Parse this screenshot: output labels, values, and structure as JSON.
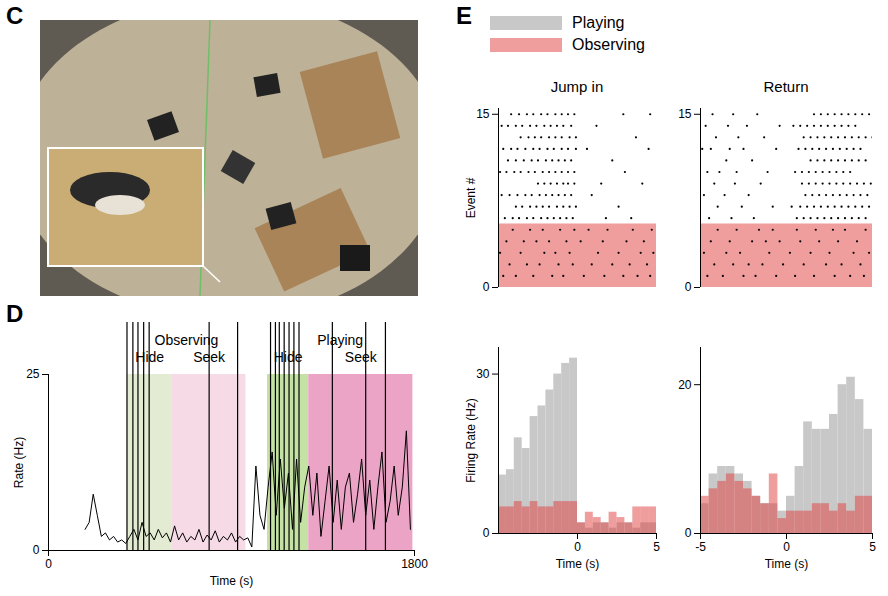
{
  "chart_data": [
    {
      "panel": "C",
      "type": "image"
    },
    {
      "panel": "D",
      "type": "line",
      "xlabel": "Time (s)",
      "ylabel": "Rate (Hz)",
      "xlim": [
        0,
        1800
      ],
      "xticks": [
        0,
        1800
      ],
      "ylim": [
        0,
        25
      ],
      "yticks": [
        0,
        25
      ],
      "color": "#000000",
      "x": [
        180,
        200,
        220,
        240,
        260,
        280,
        300,
        320,
        340,
        360,
        380,
        400,
        420,
        440,
        460,
        480,
        500,
        520,
        540,
        560,
        580,
        600,
        620,
        640,
        660,
        680,
        700,
        720,
        740,
        760,
        780,
        800,
        820,
        840,
        860,
        880,
        900,
        920,
        940,
        960,
        980,
        1000,
        1020,
        1040,
        1060,
        1080,
        1100,
        1120,
        1140,
        1160,
        1180,
        1200,
        1220,
        1240,
        1260,
        1280,
        1300,
        1320,
        1340,
        1360,
        1380,
        1400,
        1420,
        1440,
        1460,
        1480,
        1500,
        1520,
        1540,
        1560,
        1580,
        1600,
        1620,
        1640,
        1660,
        1680,
        1700,
        1720,
        1740,
        1760,
        1780
      ],
      "values": [
        3,
        4,
        8,
        5,
        2,
        2.5,
        1.5,
        2,
        1.2,
        1.5,
        1,
        2,
        3,
        1.5,
        4,
        2,
        2.5,
        1.5,
        3,
        1.8,
        2.5,
        1.2,
        3.5,
        1.5,
        2.5,
        1.2,
        2,
        1.5,
        3,
        1.2,
        2.2,
        1.5,
        2.8,
        1.2,
        2,
        1.5,
        2.5,
        1.2,
        2,
        1.5,
        1.8,
        0.5,
        12,
        5,
        3,
        9,
        14,
        5,
        13,
        6,
        11,
        3,
        13,
        4,
        9,
        12,
        5,
        11,
        2,
        7,
        12,
        4,
        10,
        3,
        9,
        11,
        4,
        8,
        13,
        5,
        10,
        3,
        9,
        14,
        4,
        7,
        12,
        5,
        9,
        17,
        3
      ],
      "regions": [
        {
          "group": "Observing",
          "label": "Hide",
          "start": 386,
          "end": 609,
          "color": "#e3ecd2"
        },
        {
          "group": "Observing",
          "label": "Seek",
          "start": 609,
          "end": 971,
          "color": "#f6dbe7"
        },
        {
          "group": "Playing",
          "label": "Hide",
          "start": 1077,
          "end": 1280,
          "color": "#c4e2a4"
        },
        {
          "group": "Playing",
          "label": "Seek",
          "start": 1280,
          "end": 1792,
          "color": "#eba3c6"
        }
      ],
      "events": [
        386,
        415,
        440,
        468,
        495,
        790,
        930,
        1092,
        1116,
        1135,
        1159,
        1183,
        1207,
        1232,
        1396,
        1560,
        1657
      ]
    },
    {
      "panel": "E",
      "type": "raster",
      "title": "Jump in",
      "ylabel": "Event #",
      "xlim": [
        -5,
        5
      ],
      "ylim": [
        0,
        15.5
      ],
      "yticks": [
        0,
        15
      ],
      "tick_labels": "y",
      "shade": {
        "name": "Observing",
        "color": "#e03c3c",
        "y": [
          0,
          5.5
        ]
      },
      "rows": [
        {
          "event": 1,
          "condition": "Observing",
          "spikes": [
            -4.7,
            -3.9,
            -2.8,
            -1.6,
            -0.9,
            0.4,
            1.7,
            2.9,
            3.8,
            4.6
          ]
        },
        {
          "event": 2,
          "condition": "Observing",
          "spikes": [
            -4.3,
            -3.2,
            -2.4,
            -1.2,
            -0.3,
            0.9,
            2.2,
            3.3,
            4.4
          ]
        },
        {
          "event": 3,
          "condition": "Observing",
          "spikes": [
            -4.9,
            -3.6,
            -2.1,
            -1.4,
            -0.5,
            1.3,
            2.6,
            4.0,
            4.8
          ]
        },
        {
          "event": 4,
          "condition": "Observing",
          "spikes": [
            -4.5,
            -3.4,
            -2.6,
            -1.8,
            -0.7,
            0.2,
            1.6,
            3.1,
            4.2
          ]
        },
        {
          "event": 5,
          "condition": "Observing",
          "spikes": [
            -4.1,
            -3.0,
            -2.2,
            -1.1,
            -0.2,
            0.7,
            1.9,
            3.5,
            4.7
          ]
        },
        {
          "event": 6,
          "condition": "Playing",
          "spikes": [
            -4.6,
            -4.1,
            -3.7,
            -3.2,
            -2.8,
            -2.3,
            -1.9,
            -1.5,
            -1.1,
            -0.7,
            -0.3,
            1.8,
            3.4
          ]
        },
        {
          "event": 7,
          "condition": "Playing",
          "spikes": [
            -3.9,
            -3.5,
            -3.0,
            -2.6,
            -2.2,
            -1.8,
            -1.3,
            -0.9,
            -0.5,
            -0.1,
            2.6
          ]
        },
        {
          "event": 8,
          "condition": "Playing",
          "spikes": [
            -4.8,
            -4.3,
            -3.8,
            -3.3,
            -2.9,
            -2.4,
            -2.0,
            -1.6,
            -1.2,
            -0.8,
            -0.4,
            0.9
          ]
        },
        {
          "event": 9,
          "condition": "Playing",
          "spikes": [
            -2.5,
            -2.1,
            -1.7,
            -1.3,
            -0.9,
            -0.6,
            -0.2,
            1.5,
            4.1
          ]
        },
        {
          "event": 10,
          "condition": "Playing",
          "spikes": [
            -4.9,
            -4.5,
            -4.0,
            -3.6,
            -3.1,
            -2.7,
            -2.2,
            -1.8,
            -1.4,
            -1.0,
            -0.6,
            -0.2,
            3.0
          ]
        },
        {
          "event": 11,
          "condition": "Playing",
          "spikes": [
            -4.4,
            -3.9,
            -3.4,
            -2.9,
            -2.5,
            -2.0,
            -1.6,
            -1.2,
            -0.8,
            -0.4,
            2.2
          ]
        },
        {
          "event": 12,
          "condition": "Playing",
          "spikes": [
            -4.7,
            -4.2,
            -3.8,
            -3.3,
            -2.8,
            -2.4,
            -1.9,
            -1.5,
            -1.0,
            -0.6,
            -0.1,
            0.6,
            4.5
          ]
        },
        {
          "event": 13,
          "condition": "Playing",
          "spikes": [
            -3.6,
            -3.1,
            -2.7,
            -2.3,
            -1.8,
            -1.4,
            -1.0,
            -0.5,
            -0.1,
            3.7
          ]
        },
        {
          "event": 14,
          "condition": "Playing",
          "spikes": [
            -4.8,
            -4.4,
            -3.9,
            -3.5,
            -3.0,
            -2.6,
            -2.1,
            -1.7,
            -1.3,
            -0.9,
            -0.4,
            1.2
          ]
        },
        {
          "event": 15,
          "condition": "Playing",
          "spikes": [
            -4.2,
            -3.7,
            -3.2,
            -2.8,
            -2.3,
            -1.9,
            -1.4,
            -1.0,
            -0.6,
            -0.2,
            2.9,
            4.6
          ]
        }
      ]
    },
    {
      "panel": "E",
      "type": "raster",
      "title": "Return",
      "xlim": [
        -5,
        5
      ],
      "ylim": [
        0,
        15.5
      ],
      "yticks": [
        0,
        15
      ],
      "tick_labels": "y",
      "shade": {
        "name": "Observing",
        "color": "#e03c3c",
        "y": [
          0,
          5.5
        ]
      },
      "rows": [
        {
          "event": 1,
          "condition": "Observing",
          "spikes": [
            -4.6,
            -3.7,
            -2.5,
            -1.8,
            -0.6,
            0.5,
            1.6,
            2.8,
            3.7,
            4.5
          ]
        },
        {
          "event": 2,
          "condition": "Observing",
          "spikes": [
            -4.2,
            -3.1,
            -2.2,
            -1.4,
            -0.2,
            1.0,
            2.3,
            3.2,
            4.3
          ]
        },
        {
          "event": 3,
          "condition": "Observing",
          "spikes": [
            -4.8,
            -3.5,
            -2.7,
            -1.0,
            0.2,
            1.4,
            2.5,
            3.9,
            4.8
          ]
        },
        {
          "event": 4,
          "condition": "Observing",
          "spikes": [
            -4.4,
            -3.3,
            -2.0,
            -1.2,
            -0.4,
            0.8,
            1.9,
            3.0,
            4.1
          ]
        },
        {
          "event": 5,
          "condition": "Observing",
          "spikes": [
            -4.0,
            -2.9,
            -1.6,
            -0.8,
            0.6,
            1.7,
            2.7,
            3.4,
            4.6
          ]
        },
        {
          "event": 6,
          "condition": "Playing",
          "spikes": [
            -4.5,
            -3.2,
            -1.9,
            0.6,
            1.0,
            1.4,
            1.8,
            2.2,
            2.6,
            3.0,
            3.4,
            3.8,
            4.2,
            4.6
          ]
        },
        {
          "event": 7,
          "condition": "Playing",
          "spikes": [
            -4.0,
            -2.6,
            -0.8,
            0.3,
            0.8,
            1.2,
            1.6,
            2.0,
            2.4,
            2.8,
            3.2,
            3.6,
            4.0,
            4.4,
            4.8
          ]
        },
        {
          "event": 8,
          "condition": "Playing",
          "spikes": [
            -4.8,
            -3.6,
            -2.2,
            1.1,
            1.5,
            1.9,
            2.3,
            2.7,
            3.1,
            3.5,
            3.9,
            4.3,
            4.7
          ]
        },
        {
          "event": 9,
          "condition": "Playing",
          "spikes": [
            -4.2,
            -3.0,
            -1.5,
            0.9,
            1.3,
            1.7,
            2.1,
            2.5,
            2.9,
            3.3,
            3.7,
            4.1,
            4.5,
            4.9
          ]
        },
        {
          "event": 10,
          "condition": "Playing",
          "spikes": [
            -4.6,
            -3.9,
            -2.9,
            -1.1,
            0.5,
            0.9,
            1.3,
            1.7,
            2.1,
            2.5,
            2.9,
            3.3,
            3.7
          ]
        },
        {
          "event": 11,
          "condition": "Playing",
          "spikes": [
            -3.5,
            -2.0,
            1.4,
            1.8,
            2.2,
            2.6,
            3.0,
            3.4,
            3.8,
            4.2,
            4.6
          ]
        },
        {
          "event": 12,
          "condition": "Playing",
          "spikes": [
            -4.9,
            -4.4,
            -3.3,
            -2.5,
            -0.6,
            0.7,
            1.1,
            1.5,
            1.9,
            2.3,
            2.7,
            3.1,
            3.5,
            3.9,
            4.3
          ]
        },
        {
          "event": 13,
          "condition": "Playing",
          "spikes": [
            -4.1,
            -2.8,
            -1.3,
            1.0,
            1.4,
            1.8,
            2.2,
            2.6,
            3.0,
            3.4,
            3.8,
            4.2,
            4.6,
            5.0
          ]
        },
        {
          "event": 14,
          "condition": "Playing",
          "spikes": [
            -4.7,
            -3.4,
            -2.3,
            -0.4,
            0.4,
            0.8,
            1.2,
            1.6,
            2.0,
            2.4,
            2.8,
            3.2,
            3.6,
            4.0
          ]
        },
        {
          "event": 15,
          "condition": "Playing",
          "spikes": [
            -4.3,
            -3.1,
            -1.7,
            1.6,
            2.0,
            2.4,
            2.8,
            3.2,
            3.6,
            4.0,
            4.4,
            4.8
          ]
        }
      ]
    },
    {
      "panel": "E",
      "type": "bar",
      "xlabel": "Time (s)",
      "ylabel": "Firing Rate (Hz)",
      "xlim": [
        -5,
        5
      ],
      "xticks": [
        0,
        5
      ],
      "ylim": [
        0,
        35
      ],
      "yticks": [
        0,
        30
      ],
      "legend": "top",
      "bins": [
        -5,
        -4.5,
        -4,
        -3.5,
        -3,
        -2.5,
        -2,
        -1.5,
        -1,
        -0.5,
        0,
        0.5,
        1,
        1.5,
        2,
        2.5,
        3,
        3.5,
        4,
        4.5,
        5
      ],
      "series": [
        {
          "name": "Playing",
          "color": "#c8c8c8",
          "values": [
            11,
            12,
            18,
            16,
            22,
            24,
            27,
            30,
            32,
            33,
            2,
            1,
            2,
            2,
            1,
            2,
            2,
            1,
            2,
            2
          ]
        },
        {
          "name": "Observing",
          "color": "#e03c3c",
          "values": [
            5,
            5,
            6,
            5,
            6,
            5,
            5,
            6,
            6,
            6,
            2,
            4,
            3,
            2,
            4,
            3,
            2,
            5,
            5,
            5
          ]
        }
      ]
    },
    {
      "panel": "E",
      "type": "bar",
      "xlabel": "Time (s)",
      "xlim": [
        -5,
        5
      ],
      "xticks": [
        -5,
        0,
        5
      ],
      "ylim": [
        0,
        25
      ],
      "yticks": [
        0,
        20
      ],
      "bins": [
        -5,
        -4.5,
        -4,
        -3.5,
        -3,
        -2.5,
        -2,
        -1.5,
        -1,
        -0.5,
        0,
        0.5,
        1,
        1.5,
        2,
        2.5,
        3,
        3.5,
        4,
        4.5,
        5
      ],
      "series": [
        {
          "name": "Playing",
          "color": "#c8c8c8",
          "values": [
            4,
            8,
            9,
            9,
            8,
            7,
            5,
            4,
            4,
            3,
            5,
            9,
            15,
            14,
            14,
            16,
            20,
            21,
            18,
            14
          ]
        },
        {
          "name": "Observing",
          "color": "#e03c3c",
          "values": [
            5,
            6,
            7,
            8,
            7,
            6,
            5,
            4,
            8,
            2,
            3,
            3,
            3,
            4,
            4,
            3,
            4,
            3,
            5,
            5
          ]
        }
      ]
    }
  ]
}
